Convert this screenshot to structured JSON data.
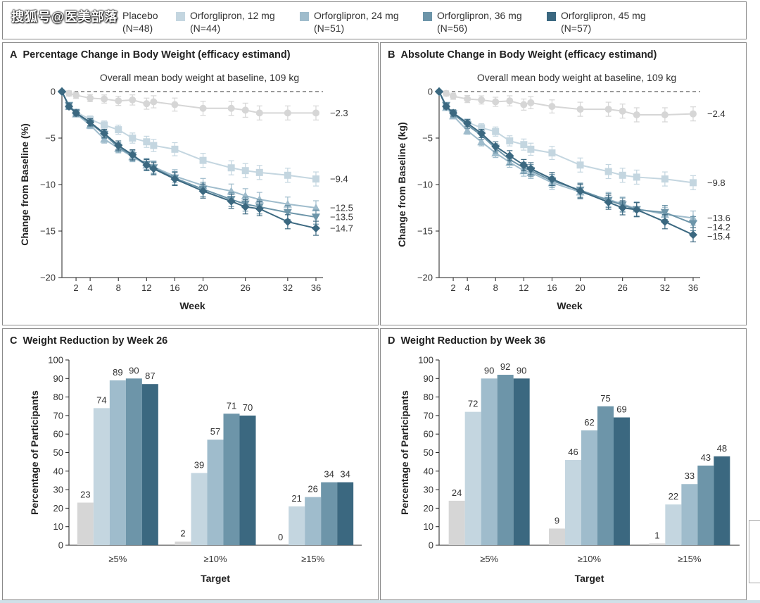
{
  "watermark": "搜狐号@医美部落",
  "legend": [
    {
      "label": "Placebo",
      "n": "(N=48)",
      "color": "#d6d6d6"
    },
    {
      "label": "Orforglipron, 12 mg",
      "n": "(N=44)",
      "color": "#c4d6e0"
    },
    {
      "label": "Orforglipron, 24 mg",
      "n": "(N=51)",
      "color": "#9fbccc"
    },
    {
      "label": "Orforglipron, 36 mg",
      "n": "(N=56)",
      "color": "#6d95a9"
    },
    {
      "label": "Orforglipron, 45 mg",
      "n": "(N=57)",
      "color": "#3b6880"
    }
  ],
  "chart_data": [
    {
      "id": "A",
      "type": "line",
      "letter": "A",
      "title": "Percentage Change in Body Weight (efficacy estimand)",
      "subtitle": "Overall mean body weight at baseline, 109 kg",
      "xlabel": "Week",
      "ylabel": "Change from Baseline (%)",
      "ylim": [
        -20,
        0
      ],
      "yticks": [
        0,
        -5,
        -10,
        -15,
        -20
      ],
      "xlim": [
        0,
        37
      ],
      "xticks": [
        2,
        4,
        8,
        12,
        16,
        20,
        26,
        32,
        36
      ],
      "series": [
        {
          "name": "Placebo",
          "x": [
            0,
            1,
            2,
            4,
            6,
            8,
            10,
            12,
            13,
            16,
            20,
            24,
            26,
            28,
            32,
            36
          ],
          "y": [
            0,
            -0.2,
            -0.4,
            -0.7,
            -0.8,
            -1.0,
            -0.9,
            -1.3,
            -1.1,
            -1.4,
            -1.8,
            -1.8,
            -2.0,
            -2.3,
            -2.3,
            -2.3
          ],
          "end_label": "−2.3"
        },
        {
          "name": "Orforglipron, 12 mg",
          "x": [
            0,
            1,
            2,
            4,
            6,
            8,
            10,
            12,
            13,
            16,
            20,
            24,
            26,
            28,
            32,
            36
          ],
          "y": [
            0,
            -1.5,
            -2.2,
            -3.0,
            -3.6,
            -4.1,
            -5.0,
            -5.4,
            -5.8,
            -6.2,
            -7.4,
            -8.2,
            -8.5,
            -8.7,
            -9.0,
            -9.4
          ],
          "end_label": "−9.4"
        },
        {
          "name": "Orforglipron, 24 mg",
          "x": [
            0,
            1,
            2,
            4,
            6,
            8,
            10,
            12,
            13,
            16,
            20,
            24,
            26,
            28,
            32,
            36
          ],
          "y": [
            0,
            -1.6,
            -2.4,
            -3.6,
            -5.1,
            -6.1,
            -7.0,
            -7.9,
            -8.1,
            -9.1,
            -10.1,
            -10.7,
            -11.2,
            -11.6,
            -12.1,
            -12.5
          ],
          "end_label": "−12.5"
        },
        {
          "name": "Orforglipron, 36 mg",
          "x": [
            0,
            1,
            2,
            4,
            6,
            8,
            10,
            12,
            13,
            16,
            20,
            24,
            26,
            28,
            32,
            36
          ],
          "y": [
            0,
            -1.5,
            -2.3,
            -3.4,
            -4.6,
            -6.0,
            -6.9,
            -7.8,
            -8.2,
            -9.3,
            -10.5,
            -11.6,
            -12.1,
            -12.4,
            -13.0,
            -13.5
          ],
          "end_label": "−13.5"
        },
        {
          "name": "Orforglipron, 45 mg",
          "x": [
            0,
            1,
            2,
            4,
            6,
            8,
            10,
            12,
            13,
            16,
            20,
            24,
            26,
            28,
            32,
            36
          ],
          "y": [
            0,
            -1.6,
            -2.3,
            -3.3,
            -4.5,
            -5.8,
            -6.8,
            -7.9,
            -8.3,
            -9.4,
            -10.7,
            -11.8,
            -12.4,
            -12.6,
            -14.0,
            -14.7
          ],
          "end_label": "−14.7"
        }
      ]
    },
    {
      "id": "B",
      "type": "line",
      "letter": "B",
      "title": "Absolute Change in Body Weight (efficacy estimand)",
      "subtitle": "Overall mean body weight at baseline, 109 kg",
      "xlabel": "Week",
      "ylabel": "Change from Baseline (kg)",
      "ylim": [
        -20,
        0
      ],
      "yticks": [
        0,
        -5,
        -10,
        -15,
        -20
      ],
      "xlim": [
        0,
        37
      ],
      "xticks": [
        2,
        4,
        8,
        12,
        16,
        20,
        26,
        32,
        36
      ],
      "series": [
        {
          "name": "Placebo",
          "x": [
            0,
            1,
            2,
            4,
            6,
            8,
            10,
            12,
            13,
            16,
            20,
            24,
            26,
            28,
            32,
            36
          ],
          "y": [
            0,
            -0.2,
            -0.5,
            -0.8,
            -0.9,
            -1.1,
            -1.0,
            -1.4,
            -1.2,
            -1.6,
            -1.9,
            -1.9,
            -2.1,
            -2.5,
            -2.5,
            -2.4
          ],
          "end_label": "−2.4"
        },
        {
          "name": "Orforglipron, 12 mg",
          "x": [
            0,
            1,
            2,
            4,
            6,
            8,
            10,
            12,
            13,
            16,
            20,
            24,
            26,
            28,
            32,
            36
          ],
          "y": [
            0,
            -1.6,
            -2.3,
            -3.3,
            -3.9,
            -4.3,
            -5.3,
            -5.7,
            -6.2,
            -6.6,
            -7.9,
            -8.6,
            -9.0,
            -9.2,
            -9.4,
            -9.8
          ],
          "end_label": "−9.8"
        },
        {
          "name": "Orforglipron, 24 mg",
          "x": [
            0,
            1,
            2,
            4,
            6,
            8,
            10,
            12,
            13,
            16,
            20,
            24,
            26,
            28,
            32,
            36
          ],
          "y": [
            0,
            -1.7,
            -2.6,
            -4.2,
            -5.4,
            -6.6,
            -7.6,
            -8.5,
            -8.7,
            -9.8,
            -10.8,
            -11.6,
            -12.1,
            -12.6,
            -13.2,
            -13.6
          ],
          "end_label": "−13.6"
        },
        {
          "name": "Orforglipron, 36 mg",
          "x": [
            0,
            1,
            2,
            4,
            6,
            8,
            10,
            12,
            13,
            16,
            20,
            24,
            26,
            28,
            32,
            36
          ],
          "y": [
            0,
            -1.5,
            -2.4,
            -3.6,
            -4.7,
            -6.1,
            -7.3,
            -8.2,
            -8.5,
            -9.6,
            -10.6,
            -11.7,
            -12.2,
            -12.7,
            -13.0,
            -14.2
          ],
          "end_label": "−14.2"
        },
        {
          "name": "Orforglipron, 45 mg",
          "x": [
            0,
            1,
            2,
            4,
            6,
            8,
            10,
            12,
            13,
            16,
            20,
            24,
            26,
            28,
            32,
            36
          ],
          "y": [
            0,
            -1.6,
            -2.3,
            -3.4,
            -4.5,
            -5.9,
            -6.9,
            -7.9,
            -8.3,
            -9.4,
            -10.7,
            -11.9,
            -12.5,
            -12.7,
            -14.0,
            -15.4
          ],
          "end_label": "−15.4"
        }
      ]
    },
    {
      "id": "C",
      "type": "bar",
      "letter": "C",
      "title": "Weight Reduction by Week 26",
      "xlabel": "Target",
      "ylabel": "Percentage of Participants",
      "ylim": [
        0,
        100
      ],
      "yticks": [
        0,
        10,
        20,
        30,
        40,
        50,
        60,
        70,
        80,
        90,
        100
      ],
      "categories": [
        "≥5%",
        "≥10%",
        "≥15%"
      ],
      "series": [
        {
          "name": "Placebo",
          "values": [
            23,
            2,
            0
          ]
        },
        {
          "name": "Orforglipron, 12 mg",
          "values": [
            74,
            39,
            21
          ]
        },
        {
          "name": "Orforglipron, 24 mg",
          "values": [
            89,
            57,
            26
          ]
        },
        {
          "name": "Orforglipron, 36 mg",
          "values": [
            90,
            71,
            34
          ]
        },
        {
          "name": "Orforglipron, 45 mg",
          "values": [
            87,
            70,
            34
          ]
        }
      ]
    },
    {
      "id": "D",
      "type": "bar",
      "letter": "D",
      "title": "Weight Reduction by Week 36",
      "xlabel": "Target",
      "ylabel": "Percentage of Participants",
      "ylim": [
        0,
        100
      ],
      "yticks": [
        0,
        10,
        20,
        30,
        40,
        50,
        60,
        70,
        80,
        90,
        100
      ],
      "categories": [
        "≥5%",
        "≥10%",
        "≥15%"
      ],
      "series": [
        {
          "name": "Placebo",
          "values": [
            24,
            9,
            1
          ]
        },
        {
          "name": "Orforglipron, 12 mg",
          "values": [
            72,
            46,
            22
          ]
        },
        {
          "name": "Orforglipron, 24 mg",
          "values": [
            90,
            62,
            33
          ]
        },
        {
          "name": "Orforglipron, 36 mg",
          "values": [
            92,
            75,
            43
          ]
        },
        {
          "name": "Orforglipron, 45 mg",
          "values": [
            90,
            69,
            48
          ]
        }
      ]
    }
  ]
}
